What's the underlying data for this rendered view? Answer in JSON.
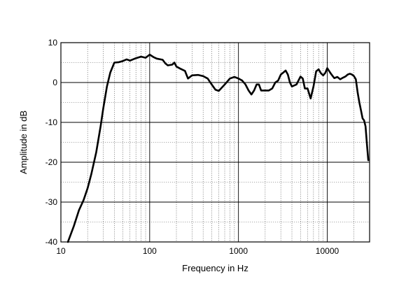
{
  "chart_data": {
    "type": "line",
    "xlabel": "Frequency in Hz",
    "ylabel": "Amplitude in dB",
    "x_scale": "log",
    "xlim": [
      10,
      30000
    ],
    "ylim": [
      -40,
      10
    ],
    "x_ticks": [
      {
        "value": 10,
        "label": "10"
      },
      {
        "value": 100,
        "label": "100"
      },
      {
        "value": 1000,
        "label": "1000"
      },
      {
        "value": 10000,
        "label": "10000"
      }
    ],
    "y_ticks": [
      {
        "value": 10,
        "label": "10"
      },
      {
        "value": 0,
        "label": "0"
      },
      {
        "value": -10,
        "label": "-10"
      },
      {
        "value": -20,
        "label": "-20"
      },
      {
        "value": -30,
        "label": "-30"
      },
      {
        "value": -40,
        "label": "-40"
      }
    ],
    "grid": true,
    "line_color": "#000000",
    "series": [
      {
        "x": [
          12,
          14,
          16,
          18,
          20,
          22,
          25,
          28,
          30,
          33,
          36,
          40,
          45,
          50,
          55,
          60,
          70,
          80,
          90,
          100,
          110,
          120,
          140,
          150,
          160,
          180,
          190,
          200,
          220,
          250,
          270,
          300,
          350,
          400,
          450,
          500,
          550,
          600,
          700,
          800,
          900,
          1000,
          1100,
          1200,
          1300,
          1400,
          1500,
          1600,
          1700,
          1800,
          2000,
          2200,
          2400,
          2600,
          2800,
          3000,
          3200,
          3400,
          3600,
          3800,
          4000,
          4500,
          5000,
          5300,
          5600,
          6000,
          6500,
          7000,
          7500,
          8000,
          8500,
          9000,
          9500,
          10000,
          11000,
          12000,
          13000,
          14000,
          15000,
          16000,
          17000,
          18000,
          19000,
          20000,
          21000,
          22000,
          23000,
          24000,
          25000,
          26000,
          27000,
          28000,
          29000
        ],
        "y": [
          -40,
          -36,
          -32,
          -29.5,
          -26.5,
          -23,
          -17.5,
          -11,
          -6.5,
          -1,
          2.5,
          5,
          5.1,
          5.4,
          5.8,
          5.5,
          6.1,
          6.5,
          6.2,
          7.0,
          6.4,
          6.0,
          5.7,
          4.8,
          4.3,
          4.5,
          5.0,
          4.0,
          3.5,
          2.9,
          1.0,
          1.8,
          1.9,
          1.6,
          1.0,
          -0.5,
          -1.8,
          -2.1,
          -0.5,
          1.0,
          1.4,
          1.0,
          0.5,
          -0.5,
          -2.0,
          -3.0,
          -2.0,
          -0.5,
          -0.5,
          -2.0,
          -2.0,
          -2.0,
          -1.5,
          0,
          0.5,
          2.0,
          2.5,
          3.0,
          2.0,
          0,
          -1.0,
          -0.5,
          1.5,
          1.0,
          -1.5,
          -1.5,
          -4.0,
          -1.0,
          2.8,
          3.3,
          2.3,
          1.8,
          2.4,
          3.6,
          2.2,
          1.1,
          1.4,
          0.8,
          1.2,
          1.5,
          2.0,
          2.2,
          2.0,
          1.6,
          0.8,
          -2.5,
          -5.0,
          -7.0,
          -9.0,
          -9.5,
          -11.0,
          -15.5,
          -19.5
        ]
      }
    ]
  }
}
